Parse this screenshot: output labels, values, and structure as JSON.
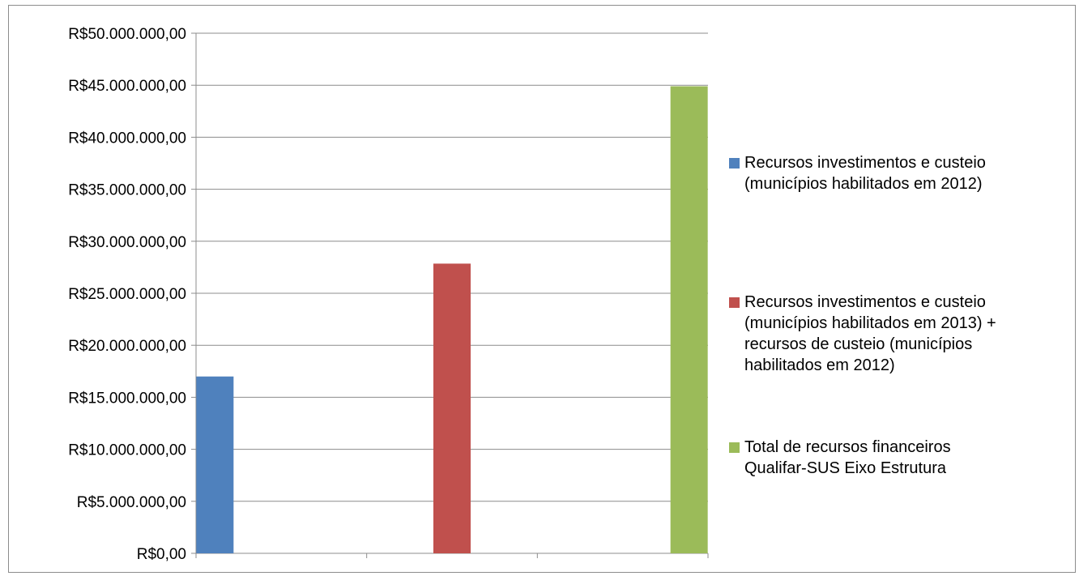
{
  "chart_data": {
    "type": "bar",
    "categories": [
      "",
      "",
      ""
    ],
    "series": [
      {
        "name": "Recursos investimentos e custeio\n(municípios habilitados em 2012)",
        "values": [
          17000000,
          null,
          null
        ],
        "color": "#4f81bd"
      },
      {
        "name": "Recursos investimentos e custeio\n(municípios habilitados em 2013) +\nrecursos de custeio (municípios\nhabilitados em 2012)",
        "values": [
          null,
          27850000,
          null
        ],
        "color": "#c0504d"
      },
      {
        "name": "Total de recursos financeiros\nQualifar-SUS Eixo Estrutura",
        "values": [
          null,
          null,
          44900000
        ],
        "color": "#9bbb59"
      }
    ],
    "ylim": [
      0,
      50000000
    ],
    "yticks": [
      {
        "value": 0,
        "label": "R$0,00"
      },
      {
        "value": 5000000,
        "label": "R$5.000.000,00"
      },
      {
        "value": 10000000,
        "label": "R$10.000.000,00"
      },
      {
        "value": 15000000,
        "label": "R$15.000.000,00"
      },
      {
        "value": 20000000,
        "label": "R$20.000.000,00"
      },
      {
        "value": 25000000,
        "label": "R$25.000.000,00"
      },
      {
        "value": 30000000,
        "label": "R$30.000.000,00"
      },
      {
        "value": 35000000,
        "label": "R$35.000.000,00"
      },
      {
        "value": 40000000,
        "label": "R$40.000.000,00"
      },
      {
        "value": 45000000,
        "label": "R$45.000.000,00"
      },
      {
        "value": 50000000,
        "label": "R$50.000.000,00"
      }
    ],
    "grid": true,
    "legend_position": "right"
  }
}
